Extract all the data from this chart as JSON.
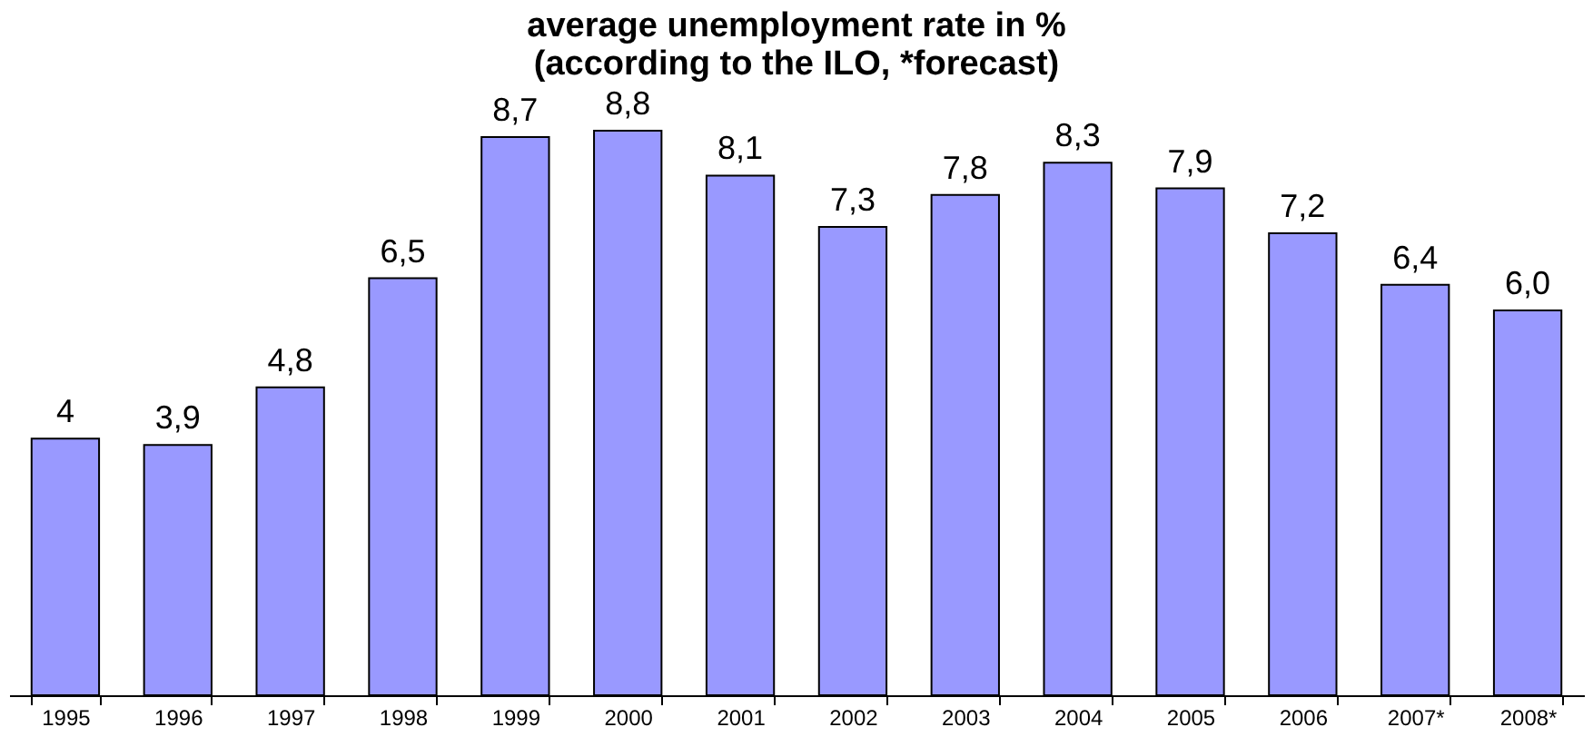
{
  "chart_data": {
    "type": "bar",
    "title": "average unemployment rate in %\n(according to the ILO, *forecast)",
    "categories": [
      "1995",
      "1996",
      "1997",
      "1998",
      "1999",
      "2000",
      "2001",
      "2002",
      "2003",
      "2004",
      "2005",
      "2006",
      "2007*",
      "2008*"
    ],
    "values": [
      4,
      3.9,
      4.8,
      6.5,
      8.7,
      8.8,
      8.1,
      7.3,
      7.8,
      8.3,
      7.9,
      7.2,
      6.4,
      6.0
    ],
    "value_labels": [
      "4",
      "3,9",
      "4,8",
      "6,5",
      "8,7",
      "8,8",
      "8,1",
      "7,3",
      "7,8",
      "8,3",
      "7,9",
      "7,2",
      "6,4",
      "6,0"
    ],
    "color": "#9999ff",
    "grid": false,
    "tick_labels": "x"
  }
}
